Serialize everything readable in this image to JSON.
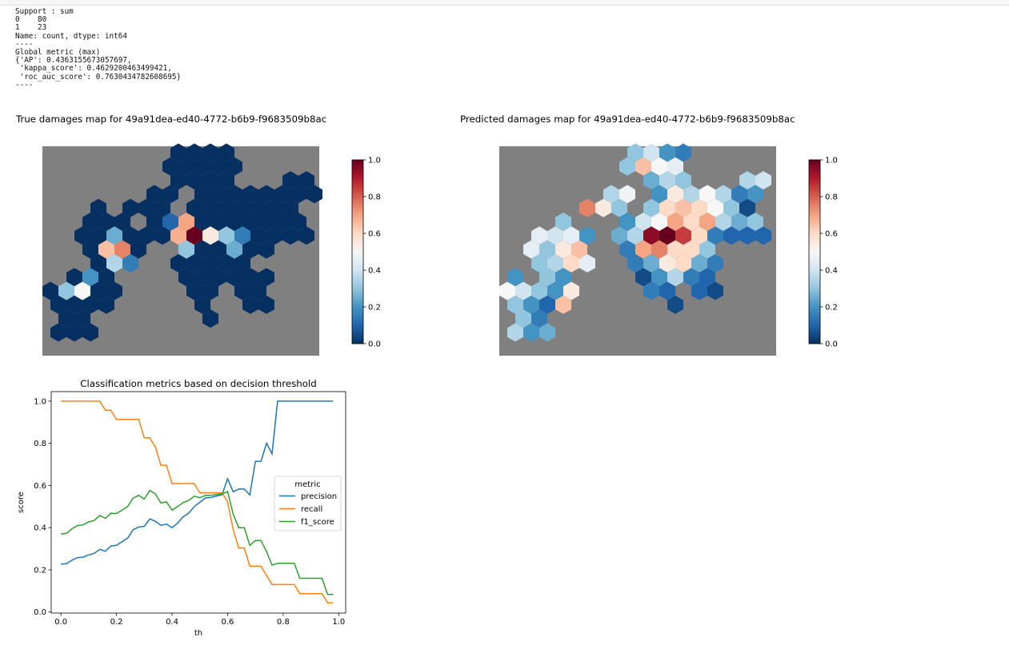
{
  "notebook_output": {
    "lines": [
      "Support : sum",
      "0    80",
      "1    23",
      "Name: count, dtype: int64",
      "----",
      "Global metric (max)",
      "{'AP': 0.4363155673057697,",
      " 'kappa_score': 0.4629200463499421,",
      " 'roc_auc_score': 0.7630434782608695}",
      "----"
    ]
  },
  "colors": {
    "map_background": "#808080",
    "precision": "#1f77b4",
    "recall": "#ff7f0e",
    "f1_score": "#2ca02c",
    "colormap": [
      "#053061",
      "#2166ac",
      "#4393c3",
      "#92c5de",
      "#d1e5f0",
      "#f7f7f7",
      "#fddbc7",
      "#f4a582",
      "#d6604d",
      "#b2182b",
      "#67001f"
    ]
  },
  "maps": [
    {
      "title": "True damages map for 49a91dea-ed40-4772-b6b9-f9683509b8ac",
      "colorbar_ticks": [
        "1.0",
        "0.8",
        "0.6",
        "0.4",
        "0.2",
        "0.0"
      ]
    },
    {
      "title": "Predicted damages map for 49a91dea-ed40-4772-b6b9-f9683509b8ac",
      "colorbar_ticks": [
        "1.0",
        "0.8",
        "0.6",
        "0.4",
        "0.2",
        "0.0"
      ]
    }
  ],
  "chart_data": {
    "type": "line",
    "title": "Classification metrics based on decision threshold",
    "xlabel": "th",
    "ylabel": "score",
    "xlim": [
      -0.035,
      1.025
    ],
    "ylim": [
      -0.005,
      1.045
    ],
    "x_ticks": [
      "0.0",
      "0.2",
      "0.4",
      "0.6",
      "0.8",
      "1.0"
    ],
    "y_ticks": [
      "0.0",
      "0.2",
      "0.4",
      "0.6",
      "0.8",
      "1.0"
    ],
    "legend": {
      "title": "metric",
      "position": "center-right"
    },
    "grid": false,
    "x": [
      0.0,
      0.02,
      0.04,
      0.06,
      0.08,
      0.1,
      0.12,
      0.14,
      0.16,
      0.18,
      0.2,
      0.22,
      0.24,
      0.26,
      0.28,
      0.3,
      0.32,
      0.34,
      0.36,
      0.38,
      0.4,
      0.42,
      0.44,
      0.46,
      0.48,
      0.5,
      0.52,
      0.54,
      0.56,
      0.58,
      0.6,
      0.62,
      0.64,
      0.66,
      0.68,
      0.7,
      0.72,
      0.74,
      0.76,
      0.78,
      0.8,
      0.82,
      0.84,
      0.86,
      0.88,
      0.9,
      0.92,
      0.94,
      0.96,
      0.98
    ],
    "series": [
      {
        "name": "precision",
        "values": [
          0.227,
          0.229,
          0.246,
          0.258,
          0.26,
          0.271,
          0.278,
          0.297,
          0.288,
          0.313,
          0.316,
          0.333,
          0.35,
          0.39,
          0.403,
          0.406,
          0.441,
          0.43,
          0.411,
          0.417,
          0.4,
          0.422,
          0.451,
          0.469,
          0.5,
          0.52,
          0.541,
          0.543,
          0.55,
          0.556,
          0.632,
          0.57,
          0.583,
          0.583,
          0.555,
          0.714,
          0.714,
          0.8,
          0.75,
          1.0,
          1.0,
          1.0,
          1.0,
          1.0,
          1.0,
          1.0,
          1.0,
          1.0,
          1.0,
          1.0
        ]
      },
      {
        "name": "recall",
        "values": [
          1.0,
          1.0,
          1.0,
          1.0,
          1.0,
          1.0,
          1.0,
          1.0,
          0.957,
          0.957,
          0.913,
          0.913,
          0.913,
          0.913,
          0.913,
          0.826,
          0.826,
          0.783,
          0.696,
          0.696,
          0.609,
          0.609,
          0.609,
          0.609,
          0.609,
          0.565,
          0.565,
          0.565,
          0.565,
          0.565,
          0.522,
          0.391,
          0.304,
          0.304,
          0.217,
          0.217,
          0.217,
          0.174,
          0.13,
          0.13,
          0.13,
          0.13,
          0.13,
          0.087,
          0.087,
          0.087,
          0.087,
          0.087,
          0.043,
          0.043
        ]
      },
      {
        "name": "f1_score",
        "values": [
          0.37,
          0.373,
          0.395,
          0.41,
          0.413,
          0.427,
          0.434,
          0.458,
          0.444,
          0.468,
          0.467,
          0.483,
          0.5,
          0.54,
          0.553,
          0.535,
          0.576,
          0.56,
          0.517,
          0.522,
          0.483,
          0.5,
          0.519,
          0.529,
          0.549,
          0.542,
          0.553,
          0.553,
          0.557,
          0.56,
          0.571,
          0.464,
          0.4,
          0.4,
          0.316,
          0.339,
          0.339,
          0.286,
          0.222,
          0.231,
          0.231,
          0.231,
          0.231,
          0.16,
          0.16,
          0.16,
          0.16,
          0.16,
          0.083,
          0.083
        ]
      }
    ]
  }
}
